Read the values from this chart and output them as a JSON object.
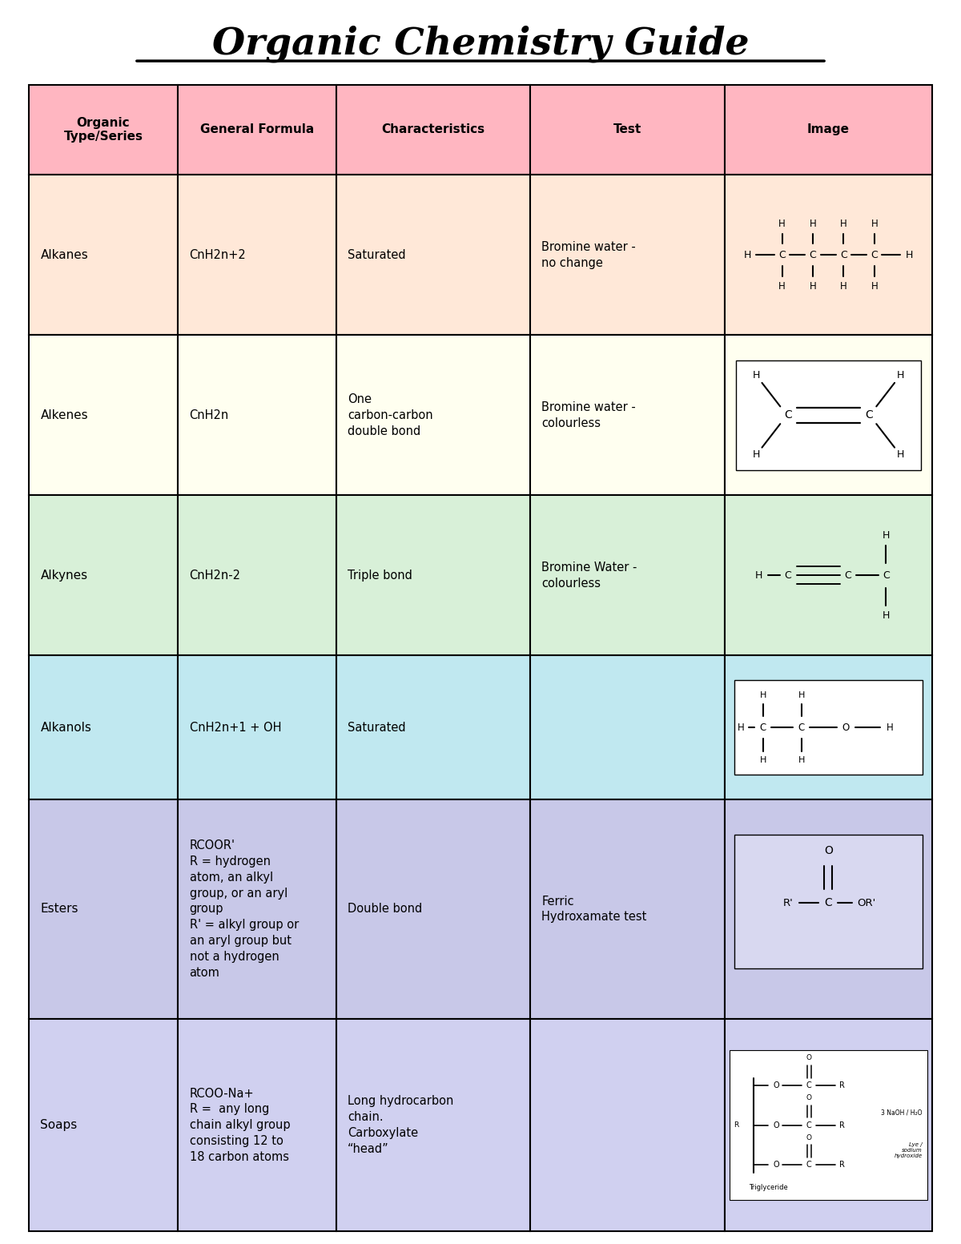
{
  "title": "Organic Chemistry Guide",
  "background_color": "#ffffff",
  "header_color": "#ffb6c1",
  "columns": [
    "Organic\nType/Series",
    "General Formula",
    "Characteristics",
    "Test",
    "Image"
  ],
  "rows": [
    {
      "name": "Alkanes",
      "formula": "CnH2n+2",
      "characteristics": "Saturated",
      "test": "Bromine water -\nno change",
      "color": "#ffe8d8"
    },
    {
      "name": "Alkenes",
      "formula": "CnH2n",
      "characteristics": "One\ncarbon-carbon\ndouble bond",
      "test": "Bromine water -\ncolourless",
      "color": "#fffff0"
    },
    {
      "name": "Alkynes",
      "formula": "CnH2n-2",
      "characteristics": "Triple bond",
      "test": "Bromine Water -\ncolourless",
      "color": "#d8f0d8"
    },
    {
      "name": "Alkanols",
      "formula": "CnH2n+1 + OH",
      "characteristics": "Saturated",
      "test": "",
      "color": "#c0e8f0"
    },
    {
      "name": "Esters",
      "formula": "RCOOR'\nR = hydrogen\natom, an alkyl\ngroup, or an aryl\ngroup\nR' = alkyl group or\nan aryl group but\nnot a hydrogen\natom",
      "characteristics": "Double bond",
      "test": "Ferric\nHydroxamate test",
      "color": "#c8c8e8"
    },
    {
      "name": "Soaps",
      "formula": "RCOO-Na+\nR =  any long\nchain alkyl group\nconsisting 12 to\n18 carbon atoms",
      "characteristics": "Long hydrocarbon\nchain.\nCarboxylate\n“head”",
      "test": "",
      "color": "#d0d0f0"
    }
  ]
}
